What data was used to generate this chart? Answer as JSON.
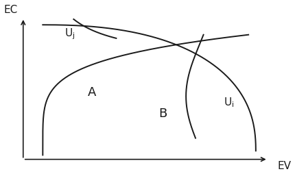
{
  "line_color": "#1a1a1a",
  "bg_color": "#ffffff",
  "font_size": 11,
  "label_font_size": 11,
  "xlim": [
    0,
    1.0
  ],
  "ylim": [
    0,
    1.0
  ],
  "xlabel": "EV",
  "ylabel": "EC"
}
